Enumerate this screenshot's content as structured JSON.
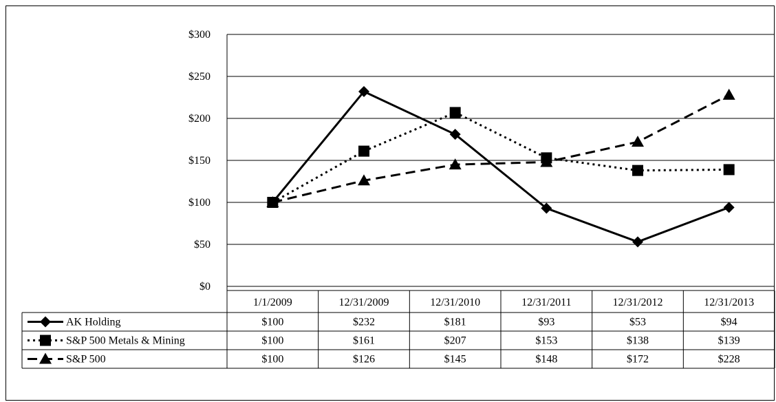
{
  "chart_data": {
    "type": "line",
    "categories": [
      "1/1/2009",
      "12/31/2009",
      "12/31/2010",
      "12/31/2011",
      "12/31/2012",
      "12/31/2013"
    ],
    "ylim": [
      0,
      300
    ],
    "yticks": [
      "$0",
      "$50",
      "$100",
      "$150",
      "$200",
      "$250",
      "$300"
    ],
    "grid": true,
    "legend": "data-table-left",
    "series": [
      {
        "name": "AK Holding",
        "values": [
          100,
          232,
          181,
          93,
          53,
          94
        ],
        "labels": [
          "$100",
          "$232",
          "$181",
          "$93",
          "$53",
          "$94"
        ],
        "line_style": "solid",
        "marker": "diamond"
      },
      {
        "name": "S&P 500 Metals & Mining",
        "values": [
          100,
          161,
          207,
          153,
          138,
          139
        ],
        "labels": [
          "$100",
          "$161",
          "$207",
          "$153",
          "$138",
          "$139"
        ],
        "line_style": "dotted",
        "marker": "square"
      },
      {
        "name": "S&P 500",
        "values": [
          100,
          126,
          145,
          148,
          172,
          228
        ],
        "labels": [
          "$100",
          "$126",
          "$145",
          "$148",
          "$172",
          "$228"
        ],
        "line_style": "dashed",
        "marker": "triangle"
      }
    ],
    "colors": {
      "line": "#000000",
      "grid": "#000000",
      "background": "#ffffff"
    }
  }
}
